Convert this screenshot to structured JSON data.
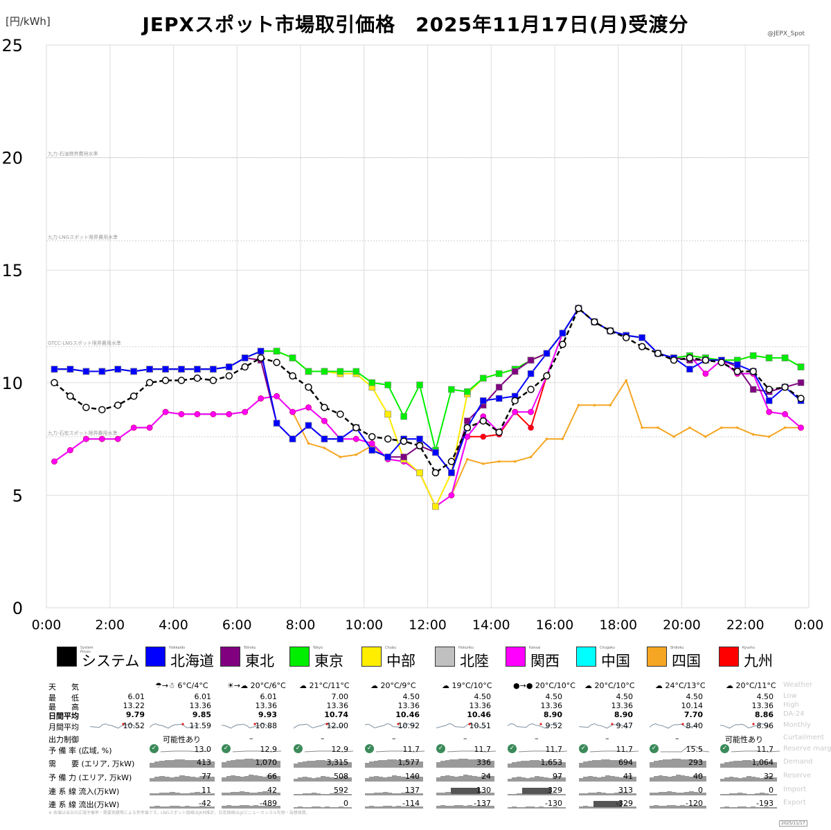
{
  "chart_data": {
    "type": "line",
    "title": "JEPXスポット市場取引価格　2025年11月17日(月)受渡分",
    "ylabel": "[円/kWh]",
    "credit": "@JEPX_Spot",
    "ylim": [
      0,
      25
    ],
    "yticks": [
      "0",
      "5",
      "10",
      "15",
      "20",
      "25"
    ],
    "xticks": [
      "0:00",
      "2:00",
      "4:00",
      "6:00",
      "8:00",
      "10:00",
      "12:00",
      "14:00",
      "16:00",
      "18:00",
      "20:00",
      "22:00",
      "0:00"
    ],
    "grid": true,
    "legend_placement": "bottom",
    "reference_lines": [
      {
        "label": "九力-石油限界費用水準",
        "value": 20.0
      },
      {
        "label": "九力-LNGスポット限界費用水準",
        "value": 16.3
      },
      {
        "label": "GTCC-LNGスポット限界費用水準",
        "value": 11.6
      },
      {
        "label": "九力-石炭スポット限界費用水準",
        "value": 7.6
      }
    ],
    "x": [
      0.25,
      0.75,
      1.25,
      1.75,
      2.25,
      2.75,
      3.25,
      3.75,
      4.25,
      4.75,
      5.25,
      5.75,
      6.25,
      6.75,
      7.25,
      7.75,
      8.25,
      8.75,
      9.25,
      9.75,
      10.25,
      10.75,
      11.25,
      11.75,
      12.25,
      12.75,
      13.25,
      13.75,
      14.25,
      14.75,
      15.25,
      15.75,
      16.25,
      16.75,
      17.25,
      17.75,
      18.25,
      18.75,
      19.25,
      19.75,
      20.25,
      20.75,
      21.25,
      21.75,
      22.25,
      22.75,
      23.25,
      23.75
    ],
    "series": [
      {
        "name": "システム",
        "en": "System Prices",
        "color": "#000000",
        "values": [
          10.0,
          9.4,
          8.9,
          8.8,
          9.0,
          9.4,
          10.0,
          10.1,
          10.1,
          10.2,
          10.1,
          10.3,
          10.7,
          11.1,
          10.9,
          10.3,
          9.8,
          8.9,
          8.6,
          8.0,
          7.6,
          7.5,
          7.4,
          7.2,
          6.0,
          6.5,
          8.0,
          8.3,
          7.8,
          9.2,
          9.7,
          10.3,
          11.7,
          13.3,
          12.7,
          12.3,
          12.0,
          11.6,
          11.3,
          11.0,
          11.1,
          11.0,
          10.9,
          10.5,
          10.5,
          9.7,
          9.8,
          9.3
        ]
      },
      {
        "name": "北海道",
        "en": "Hokkaido",
        "color": "#0000ff",
        "values": [
          10.6,
          10.6,
          10.5,
          10.5,
          10.6,
          10.5,
          10.6,
          10.6,
          10.6,
          10.6,
          10.6,
          10.7,
          11.1,
          11.4,
          8.2,
          7.5,
          8.1,
          7.5,
          7.5,
          8.0,
          7.0,
          6.7,
          7.5,
          7.5,
          6.9,
          6.0,
          8.0,
          9.2,
          9.3,
          9.4,
          10.4,
          11.3,
          12.2,
          13.3,
          12.7,
          12.3,
          12.1,
          12.0,
          11.3,
          11.1,
          10.6,
          11.0,
          11.0,
          10.8,
          10.5,
          9.2,
          9.8,
          9.2
        ]
      },
      {
        "name": "東北",
        "en": "Tohoku",
        "color": "#800080",
        "values": [
          10.6,
          10.6,
          10.5,
          10.5,
          10.6,
          10.5,
          10.6,
          10.6,
          10.6,
          10.6,
          10.6,
          10.7,
          11.1,
          11.0,
          8.2,
          7.5,
          8.1,
          7.5,
          7.5,
          8.0,
          7.0,
          6.7,
          6.7,
          7.2,
          6.9,
          6.0,
          8.3,
          9.0,
          9.8,
          10.5,
          11.0,
          11.3,
          12.2,
          13.3,
          12.7,
          12.3,
          12.1,
          12.0,
          11.3,
          11.1,
          11.0,
          11.0,
          11.0,
          10.7,
          9.7,
          9.6,
          9.8,
          10.0
        ]
      },
      {
        "name": "東京",
        "en": "Tokyo",
        "color": "#00ee00",
        "values": [
          10.6,
          10.6,
          10.5,
          10.5,
          10.6,
          10.5,
          10.6,
          10.6,
          10.6,
          10.6,
          10.6,
          10.7,
          11.1,
          11.4,
          11.4,
          11.1,
          10.5,
          10.5,
          10.5,
          10.5,
          10.0,
          9.9,
          8.5,
          9.9,
          7.0,
          9.7,
          9.6,
          10.2,
          10.4,
          10.6,
          11.0,
          11.3,
          12.2,
          13.3,
          12.7,
          12.3,
          12.1,
          12.0,
          11.3,
          11.1,
          11.2,
          11.1,
          11.0,
          11.0,
          11.2,
          11.1,
          11.1,
          10.7
        ]
      },
      {
        "name": "中部",
        "en": "Chubu",
        "color": "#ffee00",
        "values": [
          10.6,
          10.6,
          10.5,
          10.5,
          10.6,
          10.5,
          10.6,
          10.6,
          10.6,
          10.6,
          10.6,
          10.7,
          11.1,
          11.4,
          11.4,
          11.1,
          10.5,
          10.5,
          10.4,
          10.4,
          9.8,
          8.6,
          6.6,
          6.0,
          4.5,
          6.0,
          9.5,
          10.2,
          10.4,
          10.6,
          11.0,
          11.3,
          12.2,
          13.3,
          12.7,
          12.3,
          12.1,
          12.0,
          11.3,
          11.1,
          11.2,
          11.1,
          11.0,
          11.0,
          11.2,
          11.1,
          11.1,
          10.7
        ]
      },
      {
        "name": "北陸",
        "en": "Hokuriku",
        "color": "#c0c0c0",
        "values": [
          10.6,
          10.6,
          10.5,
          10.5,
          10.6,
          10.5,
          10.6,
          10.6,
          10.6,
          10.6,
          10.6,
          10.7,
          11.1,
          11.4,
          11.4,
          11.1,
          10.5,
          10.5,
          10.4,
          10.4,
          9.8,
          8.6,
          6.6,
          6.0,
          4.5,
          6.0,
          9.5,
          10.2,
          10.4,
          10.6,
          11.0,
          11.3,
          12.2,
          13.3,
          12.7,
          12.3,
          12.1,
          12.0,
          11.3,
          11.1,
          11.2,
          11.1,
          11.0,
          11.0,
          11.2,
          11.1,
          11.1,
          10.7
        ]
      },
      {
        "name": "関西",
        "en": "Kansai",
        "color": "#ff00ff",
        "values": [
          6.5,
          7.0,
          7.5,
          7.5,
          7.5,
          8.0,
          8.0,
          8.7,
          8.6,
          8.6,
          8.6,
          8.6,
          8.7,
          9.3,
          9.4,
          8.7,
          8.9,
          8.3,
          7.5,
          7.5,
          7.3,
          6.6,
          6.5,
          6.0,
          4.5,
          5.0,
          7.6,
          8.5,
          7.8,
          8.7,
          8.7,
          10.3,
          12.2,
          13.3,
          12.7,
          12.3,
          12.1,
          12.0,
          11.3,
          11.1,
          11.2,
          10.4,
          11.0,
          10.4,
          10.4,
          8.7,
          8.6,
          8.0
        ]
      },
      {
        "name": "中国",
        "en": "Chugoku",
        "color": "#00ffff",
        "values": [
          6.5,
          7.0,
          7.5,
          7.5,
          7.5,
          8.0,
          8.0,
          8.7,
          8.6,
          8.6,
          8.6,
          8.6,
          8.7,
          9.3,
          9.4,
          8.7,
          8.9,
          8.3,
          7.5,
          7.5,
          7.3,
          6.6,
          6.5,
          6.0,
          4.5,
          5.0,
          7.6,
          8.5,
          7.8,
          8.7,
          8.7,
          10.3,
          12.2,
          13.3,
          12.7,
          12.3,
          12.1,
          12.0,
          11.3,
          11.1,
          11.2,
          10.4,
          11.0,
          10.4,
          10.4,
          8.7,
          8.6,
          8.0
        ]
      },
      {
        "name": "四国",
        "en": "Shikoku",
        "color": "#f5a623",
        "values": [
          6.5,
          7.0,
          7.5,
          7.5,
          7.5,
          8.0,
          8.0,
          8.7,
          8.6,
          8.6,
          8.6,
          8.6,
          8.7,
          9.3,
          9.4,
          8.7,
          7.3,
          7.1,
          6.7,
          6.8,
          7.2,
          6.6,
          6.5,
          6.0,
          4.5,
          5.0,
          6.6,
          6.4,
          6.5,
          6.5,
          6.7,
          7.5,
          7.5,
          9.0,
          9.0,
          9.0,
          10.1,
          8.0,
          8.0,
          7.6,
          8.0,
          7.6,
          8.0,
          8.0,
          7.7,
          7.6,
          8.0,
          8.0
        ]
      },
      {
        "name": "九州",
        "en": "Kyushu",
        "color": "#ff0000",
        "values": [
          6.5,
          7.0,
          7.5,
          7.5,
          7.5,
          8.0,
          8.0,
          8.7,
          8.6,
          8.6,
          8.6,
          8.6,
          8.7,
          9.3,
          9.4,
          8.7,
          8.9,
          8.3,
          7.5,
          7.5,
          7.3,
          6.6,
          6.5,
          6.0,
          4.5,
          5.0,
          7.6,
          7.6,
          7.7,
          8.7,
          8.0,
          10.3,
          12.2,
          13.3,
          12.7,
          12.3,
          12.1,
          12.0,
          11.3,
          11.1,
          11.2,
          10.4,
          11.0,
          10.4,
          10.4,
          8.7,
          8.6,
          8.0
        ]
      }
    ]
  },
  "info_table": {
    "row_labels_jp": [
      "天　　気",
      "最　　低",
      "最　　高",
      "日間平均",
      "月間平均",
      "出力制御",
      "予 備 率 (広域, %)",
      "需　　要 (エリア, 万kW)",
      "予 備 力 (エリア, 万kW)",
      "連 系 線 流入(万kW)",
      "連 系 線 流出(万kW)"
    ],
    "row_labels_en": [
      "Weather",
      "Low",
      "High",
      "DA-24",
      "Monthly",
      "Curtailment",
      "Reserve margin",
      "Demand",
      "Reserve",
      "Import",
      "Export"
    ],
    "columns": [
      {
        "weather": "",
        "low": "6.01",
        "high": "13.22",
        "da24": "9.79",
        "monthly": "10.52",
        "curtail": "",
        "reserve_margin": "",
        "demand": "",
        "reserve": "",
        "import": "",
        "export": ""
      },
      {
        "weather": "☂→☃ 6°C/4°C",
        "low": "6.01",
        "high": "13.36",
        "da24": "9.85",
        "monthly": "11.59",
        "curtail": "可能性あり",
        "reserve_margin": "13.0",
        "demand": "413",
        "reserve": "77",
        "import": "11",
        "export": "-42"
      },
      {
        "weather": "☀→☁ 20°C/6°C",
        "low": "6.01",
        "high": "13.36",
        "da24": "9.93",
        "monthly": "10.88",
        "curtail": "–",
        "reserve_margin": "12.9",
        "demand": "1,070",
        "reserve": "66",
        "import": "42",
        "export": "-489"
      },
      {
        "weather": "☁ 21°C/11°C",
        "low": "7.00",
        "high": "13.36",
        "da24": "10.74",
        "monthly": "12.00",
        "curtail": "–",
        "reserve_margin": "12.9",
        "demand": "3,315",
        "reserve": "508",
        "import": "592",
        "export": "0"
      },
      {
        "weather": "☁ 20°C/9°C",
        "low": "4.50",
        "high": "13.36",
        "da24": "10.46",
        "monthly": "10.92",
        "curtail": "–",
        "reserve_margin": "11.7",
        "demand": "1,577",
        "reserve": "140",
        "import": "137",
        "export": "-114"
      },
      {
        "weather": "☁ 19°C/10°C",
        "low": "4.50",
        "high": "13.36",
        "da24": "10.46",
        "monthly": "10.51",
        "curtail": "–",
        "reserve_margin": "11.7",
        "demand": "336",
        "reserve": "24",
        "import": "130",
        "export": "-137"
      },
      {
        "weather": "●→● 20°C/10°C",
        "low": "4.50",
        "high": "13.36",
        "da24": "8.90",
        "monthly": "9.52",
        "curtail": "–",
        "reserve_margin": "11.7",
        "demand": "1,653",
        "reserve": "97",
        "import": "329",
        "export": "-130"
      },
      {
        "weather": "☁ 20°C/10°C",
        "low": "4.50",
        "high": "13.36",
        "da24": "8.90",
        "monthly": "9.47",
        "curtail": "–",
        "reserve_margin": "11.7",
        "demand": "694",
        "reserve": "41",
        "import": "313",
        "export": "-329"
      },
      {
        "weather": "☁ 24°C/13°C",
        "low": "4.50",
        "high": "10.14",
        "da24": "7.70",
        "monthly": "8.40",
        "curtail": "–",
        "reserve_margin": "15.5",
        "demand": "293",
        "reserve": "40",
        "import": "0",
        "export": "-120"
      },
      {
        "weather": "☁ 20°C/11°C",
        "low": "4.50",
        "high": "13.36",
        "da24": "8.86",
        "monthly": "8.96",
        "curtail": "可能性あり",
        "reserve_margin": "11.7",
        "demand": "1,064",
        "reserve": "32",
        "import": "0",
        "export": "-193"
      }
    ]
  },
  "footnote": "※ 各値は当日の広域予備率・需要実績等による参考値です。LNGスポット価格はJKM推計、石炭価格はgCCニューカッスル先物・為替換算。",
  "stamp": "2025/11/17"
}
